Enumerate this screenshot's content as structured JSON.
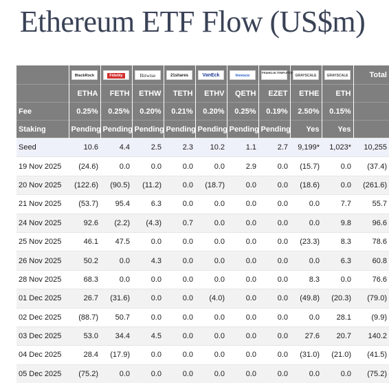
{
  "page": {
    "title": "Ethereum ETF Flow (US$m)"
  },
  "table": {
    "issuers": [
      {
        "key": "blackrock",
        "label": "BlackRock",
        "icon": "blackrock-logo"
      },
      {
        "key": "fidelity",
        "label": "Fidelity",
        "icon": "fidelity-logo"
      },
      {
        "key": "bitwise",
        "label": "Bitwise",
        "icon": "bitwise-logo"
      },
      {
        "key": "ishares",
        "label": "21shares",
        "icon": "21shares-logo"
      },
      {
        "key": "vaneck",
        "label": "VanEck",
        "icon": "vaneck-logo"
      },
      {
        "key": "invesco",
        "label": "Invesco",
        "icon": "invesco-logo"
      },
      {
        "key": "franklin",
        "label": "FRANKLIN TEMPLETON",
        "icon": "franklin-templeton-logo"
      },
      {
        "key": "grayscale1",
        "label": "GRAYSCALE",
        "icon": "grayscale-logo"
      },
      {
        "key": "grayscale2",
        "label": "GRAYSCALE",
        "icon": "grayscale-logo"
      }
    ],
    "total_label": "Total",
    "tickers": [
      "ETHA",
      "FETH",
      "ETHW",
      "TETH",
      "ETHV",
      "QETH",
      "EZET",
      "ETHE",
      "ETH"
    ],
    "fee": {
      "label": "Fee",
      "values": [
        "0.25%",
        "0.25%",
        "0.20%",
        "0.21%",
        "0.20%",
        "0.25%",
        "0.19%",
        "2.50%",
        "0.15%",
        ""
      ]
    },
    "staking": {
      "label": "Staking",
      "values": [
        "Pending",
        "Pending",
        "Pending",
        "Pending",
        "Pending",
        "Pending",
        "Pending",
        "Yes",
        "Yes",
        ""
      ]
    },
    "rows": [
      {
        "label": "Seed",
        "values": [
          "10.6",
          "4.4",
          "2.5",
          "2.3",
          "10.2",
          "1.1",
          "2.7",
          "9,199*",
          "1,023*",
          "10,255"
        ]
      },
      {
        "label": "19 Nov 2025",
        "values": [
          "(24.6)",
          "0.0",
          "0.0",
          "0.0",
          "0.0",
          "2.9",
          "0.0",
          "(15.7)",
          "0.0",
          "(37.4)"
        ]
      },
      {
        "label": "20 Nov 2025",
        "values": [
          "(122.6)",
          "(90.5)",
          "(11.2)",
          "0.0",
          "(18.7)",
          "0.0",
          "0.0",
          "(18.6)",
          "0.0",
          "(261.6)"
        ]
      },
      {
        "label": "21 Nov 2025",
        "values": [
          "(53.7)",
          "95.4",
          "6.3",
          "0.0",
          "0.0",
          "0.0",
          "0.0",
          "0.0",
          "7.7",
          "55.7"
        ]
      },
      {
        "label": "24 Nov 2025",
        "values": [
          "92.6",
          "(2.2)",
          "(4.3)",
          "0.7",
          "0.0",
          "0.0",
          "0.0",
          "0.0",
          "9.8",
          "96.6"
        ]
      },
      {
        "label": "25 Nov 2025",
        "values": [
          "46.1",
          "47.5",
          "0.0",
          "0.0",
          "0.0",
          "0.0",
          "0.0",
          "(23.3)",
          "8.3",
          "78.6"
        ]
      },
      {
        "label": "26 Nov 2025",
        "values": [
          "50.2",
          "0.0",
          "4.3",
          "0.0",
          "0.0",
          "0.0",
          "0.0",
          "0.0",
          "6.3",
          "60.8"
        ]
      },
      {
        "label": "28 Nov 2025",
        "values": [
          "68.3",
          "0.0",
          "0.0",
          "0.0",
          "0.0",
          "0.0",
          "0.0",
          "8.3",
          "0.0",
          "76.6"
        ]
      },
      {
        "label": "01 Dec 2025",
        "values": [
          "26.7",
          "(31.6)",
          "0.0",
          "0.0",
          "(4.0)",
          "0.0",
          "0.0",
          "(49.8)",
          "(20.3)",
          "(79.0)"
        ]
      },
      {
        "label": "02 Dec 2025",
        "values": [
          "(88.7)",
          "50.7",
          "0.0",
          "0.0",
          "0.0",
          "0.0",
          "0.0",
          "0.0",
          "28.1",
          "(9.9)"
        ]
      },
      {
        "label": "03 Dec 2025",
        "values": [
          "53.0",
          "34.4",
          "4.5",
          "0.0",
          "0.0",
          "0.0",
          "0.0",
          "27.6",
          "20.7",
          "140.2"
        ]
      },
      {
        "label": "04 Dec 2025",
        "values": [
          "28.4",
          "(17.9)",
          "0.0",
          "0.0",
          "0.0",
          "0.0",
          "0.0",
          "(31.0)",
          "(21.0)",
          "(41.5)"
        ]
      },
      {
        "label": "05 Dec 2025",
        "values": [
          "(75.2)",
          "0.0",
          "0.0",
          "0.0",
          "0.0",
          "0.0",
          "0.0",
          "0.0",
          "0.0",
          "(75.2)"
        ]
      }
    ]
  },
  "colors": {
    "header_bg": "#7f7f7f",
    "negative": "#e53935",
    "seed_row_bg": "#eef1f9",
    "alt_row_bg": "#f2f2f2"
  }
}
